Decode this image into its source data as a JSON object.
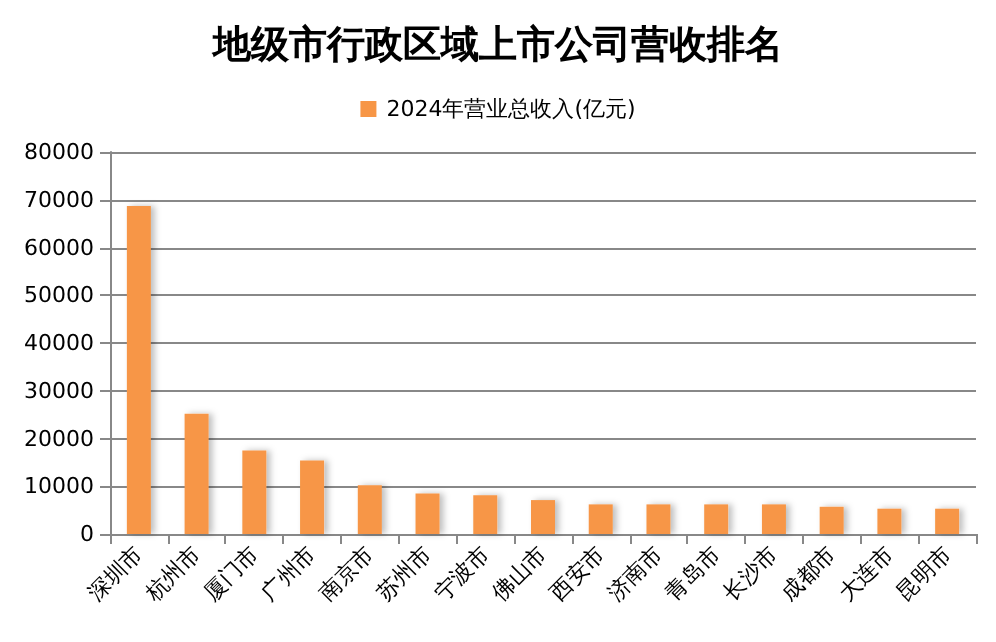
{
  "chart_data": {
    "type": "bar",
    "title": "地级市行政区域上市公司营收排名",
    "categories": [
      "深圳市",
      "杭州市",
      "厦门市",
      "广州市",
      "南京市",
      "苏州市",
      "宁波市",
      "佛山市",
      "西安市",
      "济南市",
      "青岛市",
      "长沙市",
      "成都市",
      "大连市",
      "昆明市"
    ],
    "series": [
      {
        "name": "2024年营业总收入(亿元)",
        "color": "#f79646",
        "values": [
          68700,
          25200,
          17500,
          15400,
          10200,
          8500,
          8100,
          7100,
          6200,
          6200,
          6200,
          6200,
          5700,
          5300,
          5300
        ]
      }
    ],
    "ylim": [
      0,
      80000
    ],
    "yticks": [
      0,
      10000,
      20000,
      30000,
      40000,
      50000,
      60000,
      70000,
      80000
    ],
    "grid": "y",
    "legend": "top"
  }
}
